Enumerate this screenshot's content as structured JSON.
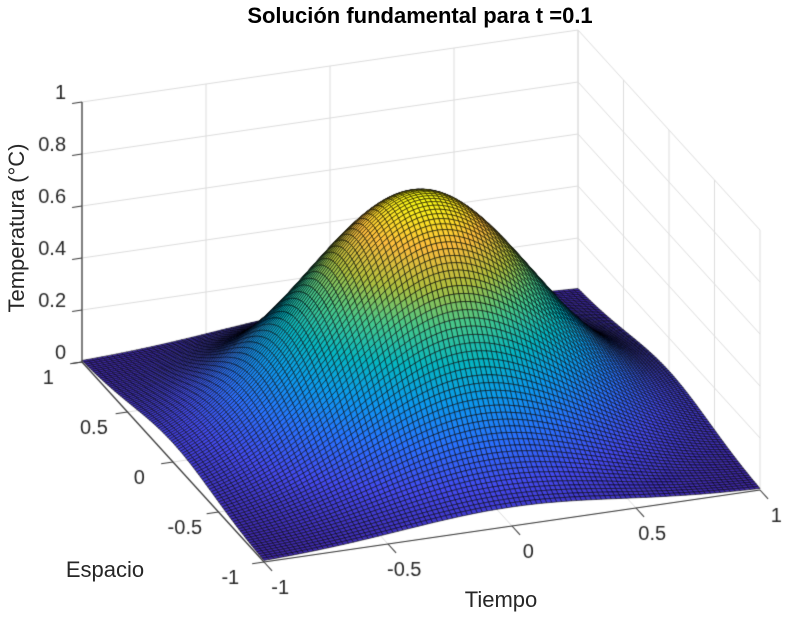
{
  "figure": {
    "background": "#ffffff"
  },
  "chart_data": {
    "type": "surface",
    "title": "Solución fundamental para t =0.1",
    "xlabel": "Tiempo",
    "ylabel": "Espacio",
    "zlabel": "Temperatura (°C)",
    "x_range": [
      -1,
      1
    ],
    "y_range": [
      -1,
      1
    ],
    "z_range": [
      0,
      1
    ],
    "x_ticks": [
      -1,
      -0.5,
      0,
      0.5,
      1
    ],
    "x_tick_labels": [
      "-1",
      "-0.5",
      "0",
      "0.5",
      "1"
    ],
    "y_ticks": [
      1,
      0.5,
      0,
      -0.5,
      -1
    ],
    "y_tick_labels": [
      "1",
      "0.5",
      "0",
      "-0.5",
      "-1"
    ],
    "z_ticks": [
      0,
      0.2,
      0.4,
      0.6,
      0.8,
      1
    ],
    "z_tick_labels": [
      "0",
      "0.2",
      "0.4",
      "0.6",
      "0.8",
      "1"
    ],
    "surface": {
      "formula": "z = 1/sqrt(4*pi*t) * exp(-(x^2+y^2)/(4*t))",
      "t": 0.1,
      "amplitude": 0.8921,
      "exponent_coefficient": 2.5,
      "grid_points": 101
    },
    "view": {
      "azimuth": -37.5,
      "elevation": 30
    },
    "grid": true,
    "colormap": {
      "name": "parula",
      "stops": [
        [
          0.0,
          62,
          38,
          168
        ],
        [
          0.125,
          67,
          74,
          239
        ],
        [
          0.25,
          40,
          114,
          254
        ],
        [
          0.375,
          12,
          152,
          236
        ],
        [
          0.5,
          6,
          181,
          192
        ],
        [
          0.625,
          70,
          199,
          138
        ],
        [
          0.75,
          176,
          190,
          61
        ],
        [
          0.875,
          252,
          188,
          61
        ],
        [
          1.0,
          249,
          251,
          21
        ]
      ]
    },
    "projection": {
      "origin": [
        264,
        562
      ],
      "x_axis_vec": [
        496,
        -72
      ],
      "y_axis_vec": [
        -182,
        -200
      ],
      "z_axis_vec": [
        0,
        -260
      ],
      "depth_dir": [
        0.609,
        0.793
      ]
    },
    "colors": {
      "mesh_edge": "#000000",
      "grid_line": "#dcdcdc",
      "axis_line": "#3a3a3a",
      "tick_label": "#262626",
      "title": "#000000"
    }
  }
}
